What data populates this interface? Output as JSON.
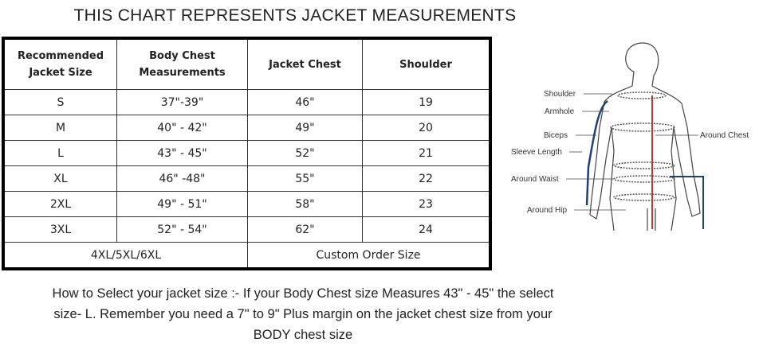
{
  "title": "THIS CHART REPRESENTS JACKET MEASUREMENTS",
  "table": {
    "headers": [
      [
        "Recommended",
        "Jacket Size"
      ],
      [
        "Body Chest",
        "Measurements"
      ],
      [
        "Jacket Chest"
      ],
      [
        "Shoulder"
      ]
    ],
    "rows": [
      [
        "S",
        "37\"-39\"",
        "46\"",
        "19"
      ],
      [
        "M",
        "40\" - 42\"",
        "49\"",
        "20"
      ],
      [
        "L",
        "43\" - 45\"",
        "52\"",
        "21"
      ],
      [
        "XL",
        "46\" -48\"",
        "55\"",
        "22"
      ],
      [
        "2XL",
        "49\" - 51\"",
        "58\"",
        "23"
      ],
      [
        "3XL",
        "52\" - 54\"",
        "62\"",
        "24"
      ]
    ],
    "footer": [
      "4XL/5XL/6XL",
      "Custom Order Size"
    ]
  },
  "diagram": {
    "labels": {
      "shoulder": "Shoulder",
      "armhole": "Armhole",
      "biceps": "Biceps",
      "sleeve_length": "Sleeve Length",
      "around_waist": "Around Waist",
      "around_hip": "Around Hip",
      "around_chest": "Around Chest"
    },
    "colors": {
      "center_line": "#c0392b",
      "sleeve_line": "#1f3f7a"
    }
  },
  "note": [
    "How to Select your jacket size :- If your Body Chest size Measures 43\" - 45\" the select",
    "size- L. Remember you need a 7\" to 9\" Plus margin on the jacket chest size from your",
    "BODY chest size"
  ]
}
